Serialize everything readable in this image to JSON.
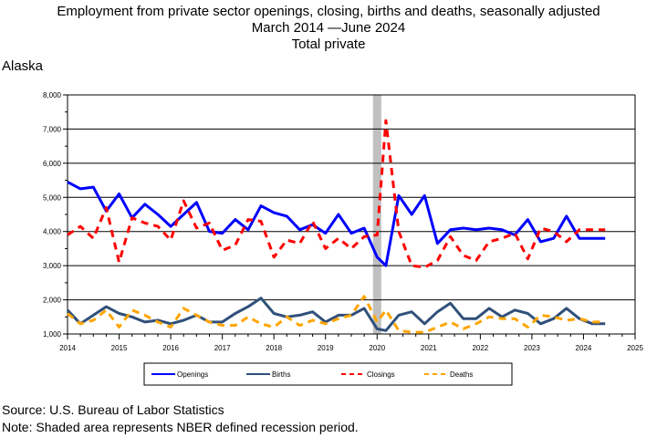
{
  "chart_data": {
    "type": "line",
    "title": "Employment from private sector openings, closing, births and deaths, seasonally adjusted",
    "subtitle": "March 2014 —June 2024",
    "subtitle2": "Total private",
    "region_label": "Alaska",
    "xlabel": "",
    "ylabel": "",
    "xlim": [
      2014,
      2025
    ],
    "ylim": [
      1000,
      8000
    ],
    "x_ticks": [
      "2014",
      "2015",
      "2016",
      "2017",
      "2018",
      "2019",
      "2020",
      "2021",
      "2022",
      "2023",
      "2024",
      "2025"
    ],
    "y_ticks": [
      "1,000",
      "2,000",
      "3,000",
      "4,000",
      "5,000",
      "6,000",
      "7,000",
      "8,000"
    ],
    "grid": true,
    "legend_position": "bottom",
    "recession": {
      "start": 2019.92,
      "end": 2020.08
    },
    "x": [
      2014.0,
      2014.25,
      2014.5,
      2014.75,
      2015.0,
      2015.25,
      2015.5,
      2015.75,
      2016.0,
      2016.25,
      2016.5,
      2016.75,
      2017.0,
      2017.25,
      2017.5,
      2017.75,
      2018.0,
      2018.25,
      2018.5,
      2018.75,
      2019.0,
      2019.25,
      2019.5,
      2019.75,
      2020.0,
      2020.17,
      2020.42,
      2020.67,
      2020.92,
      2021.17,
      2021.42,
      2021.67,
      2021.92,
      2022.17,
      2022.42,
      2022.67,
      2022.92,
      2023.17,
      2023.42,
      2023.67,
      2023.92,
      2024.17,
      2024.42
    ],
    "series": [
      {
        "name": "Openings",
        "color": "#0000ff",
        "dash": "",
        "width": 3,
        "values": [
          5450,
          5250,
          5300,
          4600,
          5100,
          4400,
          4800,
          4500,
          4150,
          4500,
          4850,
          4000,
          3950,
          4350,
          4050,
          4750,
          4550,
          4450,
          4050,
          4200,
          3950,
          4500,
          3950,
          4100,
          3250,
          3000,
          5050,
          4500,
          5050,
          3650,
          4050,
          4100,
          4050,
          4100,
          4050,
          3900,
          4350,
          3700,
          3800,
          4450,
          3800,
          3800,
          3800
        ]
      },
      {
        "name": "Births",
        "color": "#30507a",
        "dash": "",
        "width": 3,
        "values": [
          1700,
          1300,
          1550,
          1800,
          1600,
          1500,
          1350,
          1400,
          1300,
          1400,
          1550,
          1350,
          1350,
          1600,
          1800,
          2050,
          1600,
          1500,
          1550,
          1650,
          1350,
          1550,
          1550,
          1750,
          1150,
          1100,
          1550,
          1650,
          1300,
          1650,
          1900,
          1450,
          1450,
          1750,
          1500,
          1700,
          1600,
          1300,
          1450,
          1750,
          1450,
          1300,
          1300
        ]
      },
      {
        "name": "Closings",
        "color": "#ff0000",
        "dash": "8,6",
        "width": 3,
        "values": [
          3900,
          4150,
          3800,
          4700,
          3100,
          4400,
          4250,
          4150,
          3750,
          4900,
          4100,
          4250,
          3450,
          3600,
          4350,
          4300,
          3250,
          3750,
          3650,
          4300,
          3500,
          3800,
          3500,
          3850,
          3900,
          7250,
          4000,
          3000,
          2950,
          3150,
          3850,
          3300,
          3150,
          3700,
          3800,
          3950,
          3200,
          4100,
          4000,
          3700,
          4050,
          4050,
          4050
        ]
      },
      {
        "name": "Deaths",
        "color": "#ffa500",
        "dash": "8,6",
        "width": 3,
        "values": [
          1600,
          1300,
          1400,
          1700,
          1200,
          1700,
          1550,
          1350,
          1200,
          1750,
          1550,
          1350,
          1250,
          1250,
          1500,
          1300,
          1200,
          1500,
          1250,
          1400,
          1300,
          1450,
          1550,
          2100,
          1350,
          1700,
          1100,
          1050,
          1050,
          1200,
          1350,
          1150,
          1300,
          1500,
          1450,
          1450,
          1200,
          1550,
          1500,
          1400,
          1450,
          1350,
          1350
        ]
      }
    ]
  },
  "footer": {
    "source": "Source: U.S. Bureau of Labor Statistics",
    "note": "Note: Shaded area represents NBER defined recession period."
  }
}
